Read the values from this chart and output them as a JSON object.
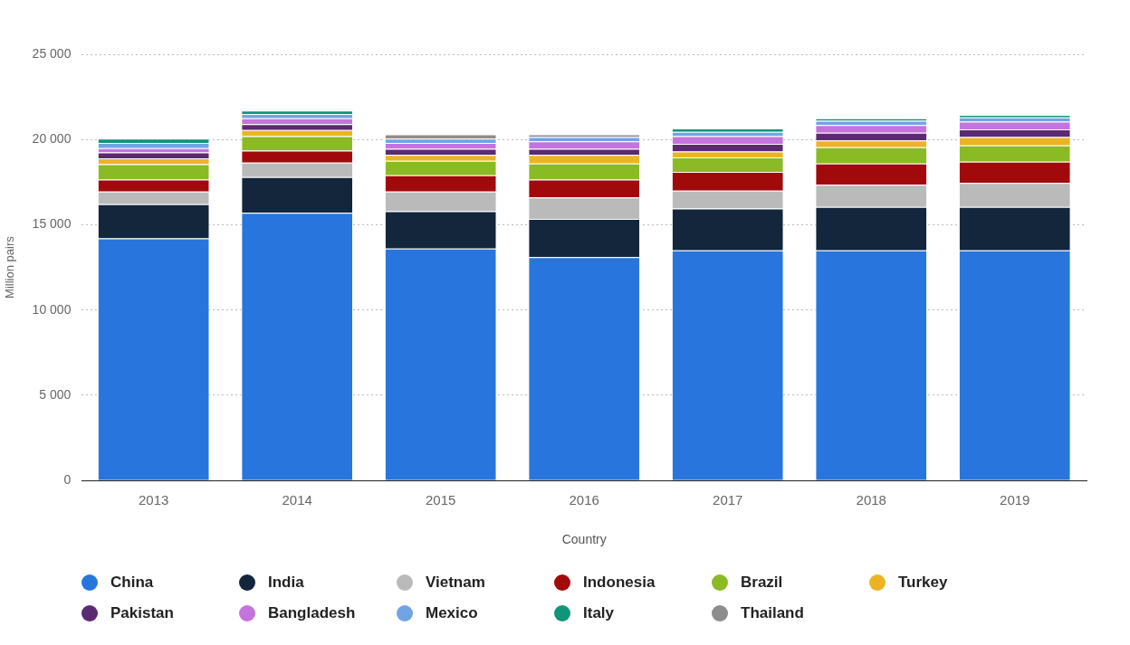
{
  "chart_data": {
    "type": "bar",
    "stacked": true,
    "xlabel": "Country",
    "ylabel": "Million pairs",
    "categories": [
      "2013",
      "2014",
      "2015",
      "2016",
      "2017",
      "2018",
      "2019"
    ],
    "ylim": [
      0,
      25000
    ],
    "yticks": [
      {
        "value": 0,
        "label": "0"
      },
      {
        "value": 5000,
        "label": "5 000"
      },
      {
        "value": 10000,
        "label": "10 000"
      },
      {
        "value": 15000,
        "label": "15 000"
      },
      {
        "value": 20000,
        "label": "20 000"
      },
      {
        "value": 25000,
        "label": "25 000"
      }
    ],
    "grid": "y",
    "legend": "bottom",
    "series": [
      {
        "name": "China",
        "color": "#2876dd",
        "values": [
          14200,
          15700,
          13600,
          13100,
          13500,
          13500,
          13500
        ]
      },
      {
        "name": "India",
        "color": "#13263c",
        "values": [
          2000,
          2100,
          2200,
          2250,
          2450,
          2550,
          2550
        ]
      },
      {
        "name": "Vietnam",
        "color": "#bababa",
        "values": [
          750,
          850,
          1150,
          1250,
          1050,
          1300,
          1400
        ]
      },
      {
        "name": "Indonesia",
        "color": "#a10a0b",
        "values": [
          700,
          700,
          950,
          1050,
          1100,
          1250,
          1250
        ]
      },
      {
        "name": "Brazil",
        "color": "#8abb25",
        "values": [
          900,
          850,
          850,
          950,
          850,
          950,
          950
        ]
      },
      {
        "name": "Turkey",
        "color": "#ecb424",
        "values": [
          350,
          350,
          350,
          500,
          350,
          400,
          500
        ]
      },
      {
        "name": "Pakistan",
        "color": "#5b2a73",
        "values": [
          350,
          350,
          350,
          350,
          450,
          450,
          450
        ]
      },
      {
        "name": "Bangladesh",
        "color": "#c474dc",
        "values": [
          250,
          350,
          350,
          450,
          450,
          450,
          450
        ]
      },
      {
        "name": "Mexico",
        "color": "#71a4e4",
        "values": [
          300,
          250,
          250,
          250,
          250,
          250,
          250
        ]
      },
      {
        "name": "Italy",
        "color": "#10957a",
        "values": [
          250,
          200,
          null,
          null,
          200,
          150,
          150
        ]
      },
      {
        "name": "Thailand",
        "color": "#8d8d8d",
        "values": [
          null,
          null,
          250,
          150,
          null,
          null,
          null
        ]
      }
    ]
  }
}
